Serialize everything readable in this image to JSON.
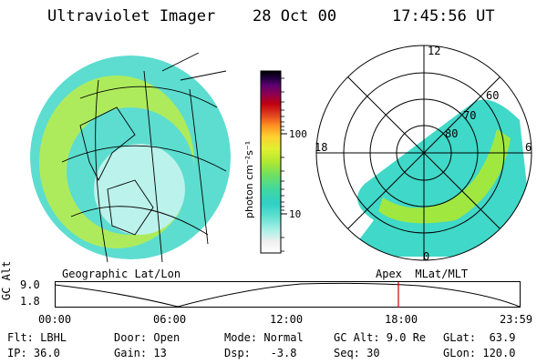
{
  "header": {
    "title": "Ultraviolet Imager",
    "date": "28 Oct 00",
    "time": "17:45:56 UT"
  },
  "left_panel": {
    "caption": "Geographic Lat/Lon"
  },
  "right_panel": {
    "caption": "Apex  MLat/MLT",
    "mlt_labels": [
      "12",
      "18",
      "6",
      "0"
    ],
    "lat_labels": [
      "60",
      "70",
      "80"
    ]
  },
  "colorbar": {
    "unit": "photon cm⁻²s⁻¹",
    "tick_labels": [
      "100",
      "10"
    ],
    "colors": [
      "#ffffff",
      "#f0f0f0",
      "#b0f0e8",
      "#60e0d0",
      "#30d0c8",
      "#40d8a0",
      "#70e060",
      "#b0e830",
      "#e0f030",
      "#ffd030",
      "#ff9020",
      "#e04020",
      "#c00010",
      "#900050",
      "#600070",
      "#200040",
      "#000000"
    ]
  },
  "alt_plot": {
    "axis_label": "GC Alt",
    "y_ticks": [
      "9.0",
      "1.8"
    ],
    "x_ticks": [
      "00:00",
      "06:00",
      "12:00",
      "18:00",
      "23:59"
    ],
    "marker_color": "#d00000"
  },
  "status": {
    "flt": "Flt: LBHL",
    "ip": "IP: 36.0",
    "door": "Door: Open",
    "gain": "Gain: 13",
    "mode": "Mode: Normal",
    "dsp": "Dsp:   -3.8",
    "gcalt": "GC Alt: 9.0 Re",
    "seq": "Seq: 30",
    "glat": "GLat:  63.9",
    "glon": "GLon: 120.0"
  }
}
